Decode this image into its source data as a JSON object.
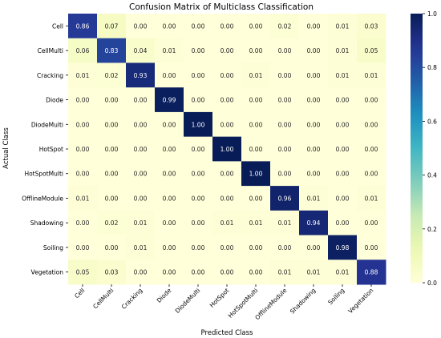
{
  "chart_data": {
    "type": "heatmap",
    "title": "Confusion Matrix of Multiclass Classification",
    "xlabel": "Predicted Class",
    "ylabel": "Actual Class",
    "row_labels": [
      "Cell",
      "CellMulti",
      "Cracking",
      "Diode",
      "DiodeMulti",
      "HotSpot",
      "HotSpotMulti",
      "OfflineModule",
      "Shadowing",
      "Soiling",
      "Vegetation"
    ],
    "col_labels": [
      "Cell",
      "CellMulti",
      "Cracking",
      "Diode",
      "DiodeMulti",
      "HotSpot",
      "HotSpotMulti",
      "OfflineModule",
      "Shadowing",
      "Soiling",
      "Vegetation"
    ],
    "values": [
      [
        0.86,
        0.07,
        0.0,
        0.0,
        0.0,
        0.0,
        0.0,
        0.02,
        0.0,
        0.01,
        0.03
      ],
      [
        0.06,
        0.83,
        0.04,
        0.01,
        0.0,
        0.0,
        0.0,
        0.0,
        0.0,
        0.01,
        0.05
      ],
      [
        0.01,
        0.02,
        0.93,
        0.0,
        0.0,
        0.0,
        0.01,
        0.0,
        0.0,
        0.01,
        0.01
      ],
      [
        0.0,
        0.0,
        0.0,
        0.99,
        0.0,
        0.0,
        0.0,
        0.0,
        0.0,
        0.0,
        0.0
      ],
      [
        0.0,
        0.0,
        0.0,
        0.0,
        1.0,
        0.0,
        0.0,
        0.0,
        0.0,
        0.0,
        0.0
      ],
      [
        0.0,
        0.0,
        0.0,
        0.0,
        0.0,
        1.0,
        0.0,
        0.0,
        0.0,
        0.0,
        0.0
      ],
      [
        0.0,
        0.0,
        0.0,
        0.0,
        0.0,
        0.0,
        1.0,
        0.0,
        0.0,
        0.0,
        0.0
      ],
      [
        0.01,
        0.0,
        0.0,
        0.0,
        0.0,
        0.0,
        0.0,
        0.96,
        0.01,
        0.0,
        0.01
      ],
      [
        0.0,
        0.02,
        0.01,
        0.0,
        0.0,
        0.01,
        0.01,
        0.01,
        0.94,
        0.0,
        0.0
      ],
      [
        0.0,
        0.0,
        0.01,
        0.0,
        0.0,
        0.0,
        0.0,
        0.0,
        0.0,
        0.98,
        0.0
      ],
      [
        0.05,
        0.03,
        0.0,
        0.0,
        0.0,
        0.0,
        0.0,
        0.01,
        0.01,
        0.01,
        0.88
      ]
    ],
    "value_format": "0.00",
    "colorbar": {
      "range": [
        0.0,
        1.0
      ],
      "ticks": [
        "0.0",
        "0.2",
        "0.4",
        "0.6",
        "0.8",
        "1.0"
      ],
      "colormap": "YlGnBu"
    },
    "colors": {
      "low": "#ffffd9",
      "high": "#081d58",
      "text_dark": "#262626",
      "text_light": "#ffffff"
    }
  }
}
